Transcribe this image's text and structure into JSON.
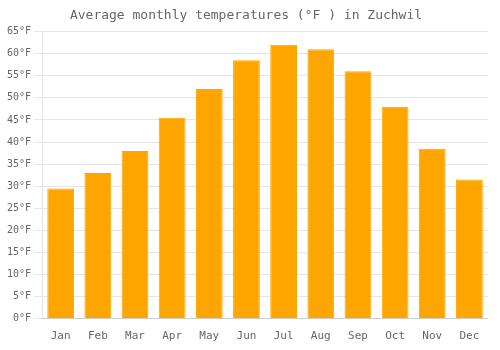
{
  "chart_data": {
    "type": "bar",
    "title": "Average monthly temperatures (°F ) in Zuchwil",
    "categories": [
      "Jan",
      "Feb",
      "Mar",
      "Apr",
      "May",
      "Jun",
      "Jul",
      "Aug",
      "Sep",
      "Oct",
      "Nov",
      "Dec"
    ],
    "values": [
      29.5,
      33.0,
      38.0,
      45.5,
      52.0,
      58.5,
      62.0,
      61.0,
      56.0,
      48.0,
      38.5,
      31.5
    ],
    "color": "#FFA500",
    "ylim": [
      0,
      65
    ],
    "yticks": [
      {
        "value": 0,
        "label": "0°F"
      },
      {
        "value": 5,
        "label": "5°F"
      },
      {
        "value": 10,
        "label": "10°F"
      },
      {
        "value": 15,
        "label": "15°F"
      },
      {
        "value": 20,
        "label": "20°F"
      },
      {
        "value": 25,
        "label": "25°F"
      },
      {
        "value": 30,
        "label": "30°F"
      },
      {
        "value": 35,
        "label": "35°F"
      },
      {
        "value": 40,
        "label": "40°F"
      },
      {
        "value": 45,
        "label": "45°F"
      },
      {
        "value": 50,
        "label": "50°F"
      },
      {
        "value": 55,
        "label": "55°F"
      },
      {
        "value": 60,
        "label": "60°F"
      },
      {
        "value": 65,
        "label": "65°F"
      }
    ],
    "grid": true
  }
}
